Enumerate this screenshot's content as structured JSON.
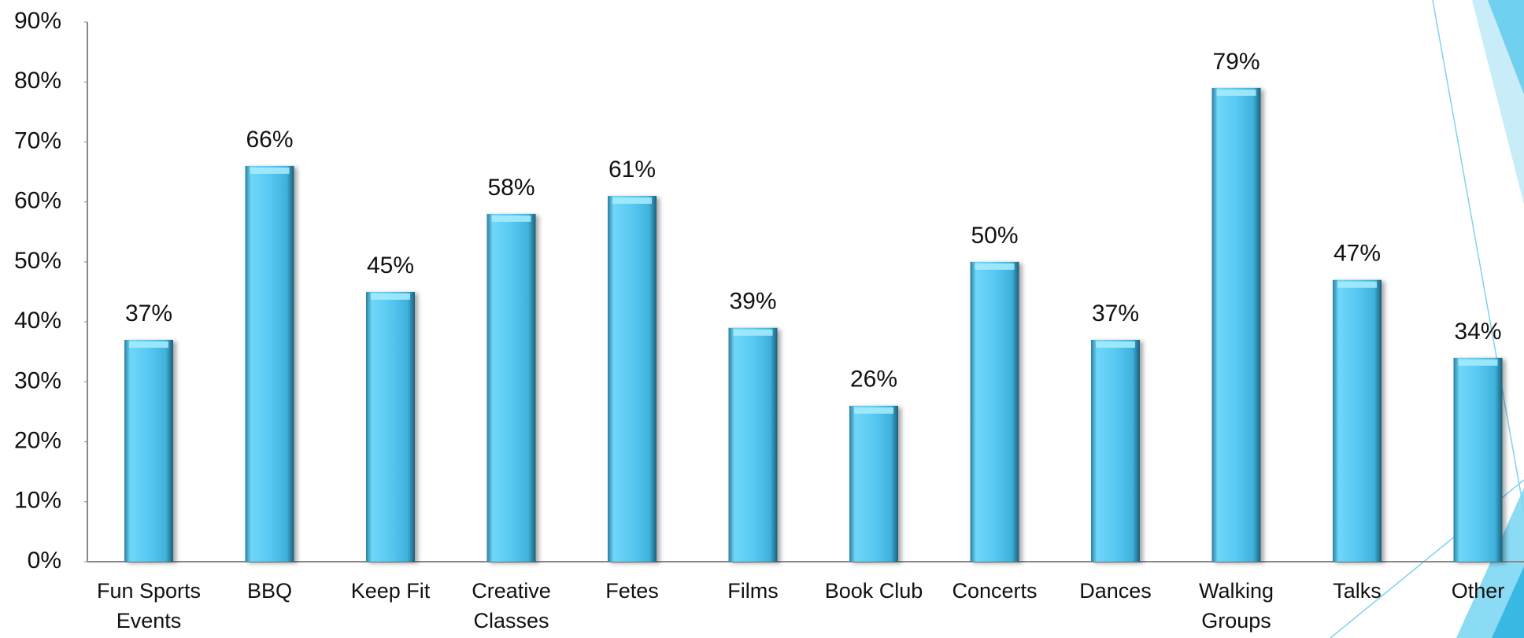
{
  "chart_data": {
    "type": "bar",
    "categories": [
      "Fun Sports Events",
      "BBQ",
      "Keep Fit",
      "Creative Classes",
      "Fetes",
      "Films",
      "Book Club",
      "Concerts",
      "Dances",
      "Walking Groups",
      "Talks",
      "Other"
    ],
    "values": [
      37,
      66,
      45,
      58,
      61,
      39,
      26,
      50,
      37,
      79,
      47,
      34
    ],
    "value_labels": [
      "37%",
      "66%",
      "45%",
      "58%",
      "61%",
      "39%",
      "26%",
      "50%",
      "37%",
      "79%",
      "47%",
      "34%"
    ],
    "color": "#56c8f0",
    "ylim": [
      0,
      90
    ],
    "yticks": [
      {
        "value": 0,
        "label": "0%"
      },
      {
        "value": 10,
        "label": "10%"
      },
      {
        "value": 20,
        "label": "20%"
      },
      {
        "value": 30,
        "label": "30%"
      },
      {
        "value": 40,
        "label": "40%"
      },
      {
        "value": 50,
        "label": "50%"
      },
      {
        "value": 60,
        "label": "60%"
      },
      {
        "value": 70,
        "label": "70%"
      },
      {
        "value": 80,
        "label": "80%"
      },
      {
        "value": 90,
        "label": "90%"
      }
    ],
    "grid": false
  }
}
